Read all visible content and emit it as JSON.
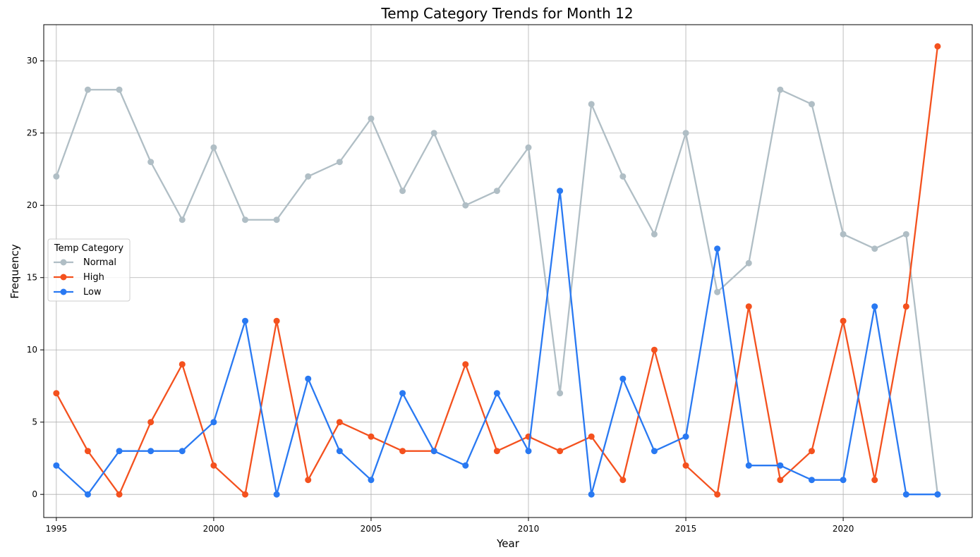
{
  "chart_data": {
    "type": "line",
    "title": "Temp Category Trends for Month 12",
    "xlabel": "Year",
    "ylabel": "Frequency",
    "x": [
      1995,
      1996,
      1997,
      1998,
      1999,
      2000,
      2001,
      2002,
      2003,
      2004,
      2005,
      2006,
      2007,
      2008,
      2009,
      2010,
      2011,
      2012,
      2013,
      2014,
      2015,
      2016,
      2017,
      2018,
      2019,
      2020,
      2021,
      2022,
      2023
    ],
    "xlim": [
      1994.6,
      2024.1
    ],
    "ylim": [
      -1.6,
      32.5
    ],
    "xticks": [
      1995,
      2000,
      2005,
      2010,
      2015,
      2020
    ],
    "yticks": [
      0,
      5,
      10,
      15,
      20,
      25,
      30
    ],
    "grid": true,
    "legend": {
      "title": "Temp Category",
      "placement": "center-left"
    },
    "series": [
      {
        "name": "Normal",
        "color": "#b0bec5",
        "values": [
          22,
          28,
          28,
          23,
          19,
          24,
          19,
          19,
          22,
          23,
          26,
          21,
          25,
          20,
          21,
          24,
          7,
          27,
          22,
          18,
          25,
          14,
          16,
          28,
          27,
          18,
          17,
          18,
          0
        ]
      },
      {
        "name": "High",
        "color": "#f4511e",
        "values": [
          7,
          3,
          0,
          5,
          9,
          2,
          0,
          12,
          1,
          5,
          4,
          3,
          3,
          9,
          3,
          4,
          3,
          4,
          1,
          10,
          2,
          0,
          13,
          1,
          3,
          12,
          1,
          13,
          31
        ]
      },
      {
        "name": "Low",
        "color": "#2979f2",
        "values": [
          2,
          0,
          3,
          3,
          3,
          5,
          12,
          0,
          8,
          3,
          1,
          7,
          3,
          2,
          7,
          3,
          21,
          0,
          8,
          3,
          4,
          17,
          2,
          2,
          1,
          1,
          13,
          0,
          0
        ]
      }
    ]
  }
}
